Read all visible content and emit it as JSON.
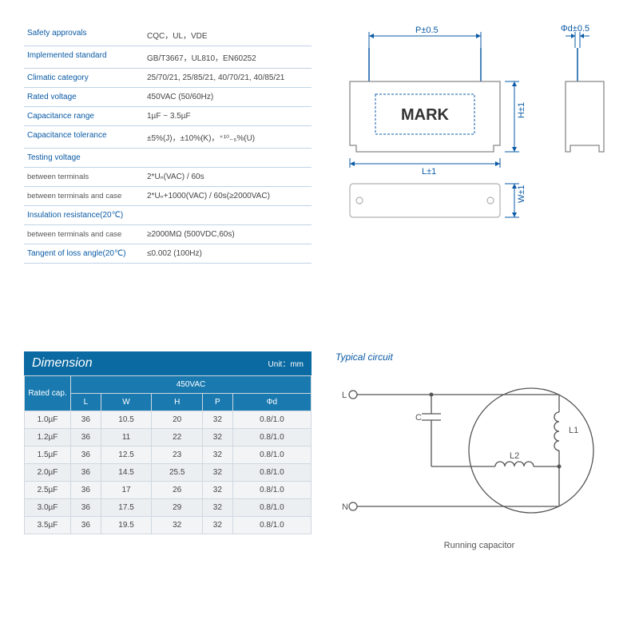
{
  "specs": {
    "rows": [
      {
        "label": "Safety  approvals",
        "value": "CQC，UL，VDE",
        "type": "head"
      },
      {
        "label": "Implemented standard",
        "value": "GB/T3667，UL810，EN60252",
        "type": "head"
      },
      {
        "label": "Climatic category",
        "value": "25/70/21, 25/85/21, 40/70/21, 40/85/21",
        "type": "head"
      },
      {
        "label": "Rated voltage",
        "value": "450VAC (50/60Hz)",
        "type": "head"
      },
      {
        "label": "Capacitance range",
        "value": "1µF ~ 3.5µF",
        "type": "head"
      },
      {
        "label": "Capacitance tolerance",
        "value": "±5%(J)，±10%(K)，⁺¹⁰₋₅%(U)",
        "type": "head"
      },
      {
        "label": "Testing voltage",
        "value": "",
        "type": "head"
      },
      {
        "label": "between terminals",
        "value": "2*Uₙ(VAC) / 60s",
        "type": "sub"
      },
      {
        "label": "between terminals and case",
        "value": "2*Uₙ+1000(VAC) / 60s(≥2000VAC)",
        "type": "sub"
      },
      {
        "label": "Insulation resistance(20℃)",
        "value": "",
        "type": "head"
      },
      {
        "label": "between terminals and case",
        "value": "≥2000MΩ            (500VDC,60s)",
        "type": "sub"
      },
      {
        "label": "Tangent of loss angle(20℃)",
        "value": "≤0.002     (100Hz)",
        "type": "head"
      }
    ]
  },
  "diagram_labels": {
    "P": "P±0.5",
    "Phid": "Φd±0.5",
    "H": "H±1",
    "L": "L±1",
    "W": "W±1",
    "mark": "MARK"
  },
  "diagram_style": {
    "stroke": "#0a5aa5",
    "body_stroke": "#888",
    "body_fill": "#ffffff"
  },
  "dimension": {
    "title": "Dimension",
    "unit_label": "Unit：mm",
    "rated_cap_label": "Rated cap.",
    "volt_header": "450VAC",
    "cols": [
      "L",
      "W",
      "H",
      "P",
      "Φd"
    ],
    "rows": [
      {
        "cap": "1.0µF",
        "vals": [
          "36",
          "10.5",
          "20",
          "32",
          "0.8/1.0"
        ]
      },
      {
        "cap": "1.2µF",
        "vals": [
          "36",
          "11",
          "22",
          "32",
          "0.8/1.0"
        ]
      },
      {
        "cap": "1.5µF",
        "vals": [
          "36",
          "12.5",
          "23",
          "32",
          "0.8/1.0"
        ]
      },
      {
        "cap": "2.0µF",
        "vals": [
          "36",
          "14.5",
          "25.5",
          "32",
          "0.8/1.0"
        ]
      },
      {
        "cap": "2.5µF",
        "vals": [
          "36",
          "17",
          "26",
          "32",
          "0.8/1.0"
        ]
      },
      {
        "cap": "3.0µF",
        "vals": [
          "36",
          "17.5",
          "29",
          "32",
          "0.8/1.0"
        ]
      },
      {
        "cap": "3.5µF",
        "vals": [
          "36",
          "19.5",
          "32",
          "32",
          "0.8/1.0"
        ]
      }
    ]
  },
  "circuit": {
    "title": "Typical circuit",
    "caption": "Running capacitor",
    "labels": {
      "L": "L",
      "N": "N",
      "C": "C",
      "L1": "L1",
      "L2": "L2"
    }
  },
  "colors": {
    "accent": "#0a5aa5",
    "table_header": "#1a7ab0",
    "dim_title_bg": "#0b6aa1",
    "row_border": "#bfd3e6",
    "grid_border": "#cfd8e0"
  }
}
